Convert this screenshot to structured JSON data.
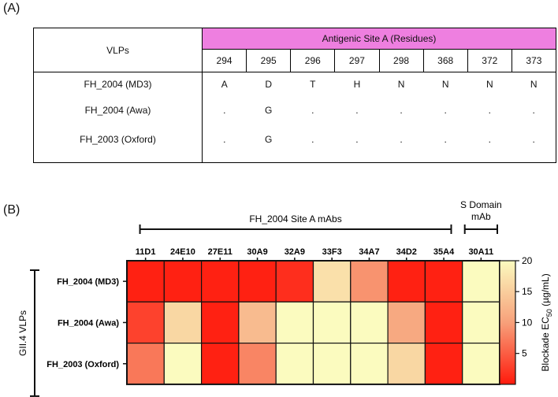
{
  "panel_a": {
    "label": "(A)",
    "vlps_header": "VLPs",
    "site_header": "Antigenic Site A (Residues)",
    "residues": [
      "294",
      "295",
      "296",
      "297",
      "298",
      "368",
      "372",
      "373"
    ],
    "rows": [
      {
        "name": "FH_2004 (MD3)",
        "values": [
          "A",
          "D",
          "T",
          "H",
          "N",
          "N",
          "N",
          "N"
        ]
      },
      {
        "name": "FH_2004 (Awa)",
        "values": [
          ".",
          "G",
          ".",
          ".",
          ".",
          ".",
          ".",
          "."
        ]
      },
      {
        "name": "FH_2003 (Oxford)",
        "values": [
          ".",
          "G",
          ".",
          ".",
          ".",
          ".",
          ".",
          "."
        ]
      }
    ]
  },
  "panel_b": {
    "label": "(B)",
    "group_label_site_a": "FH_2004 Site A mAbs",
    "group_label_s_domain_line1": "S Domain",
    "group_label_s_domain_line2": "mAb",
    "y_group_label": "GII.4 VLPs",
    "colorbar_label": "Blockade EC",
    "colorbar_sub": "50",
    "colorbar_unit": " (µg/mL)",
    "colors": {
      "low": "#ff1a0c",
      "mid": "#f7a07a",
      "high": "#fbfbbf"
    }
  },
  "chart_data": {
    "type": "heatmap",
    "title": "",
    "x_categories": [
      "11D1",
      "24E10",
      "27E11",
      "30A9",
      "32A9",
      "33F3",
      "34A7",
      "34D2",
      "35A4",
      "30A11"
    ],
    "y_categories": [
      "FH_2004 (MD3)",
      "FH_2004 (Awa)",
      "FH_2003 (Oxford)"
    ],
    "values": [
      [
        0.5,
        0.5,
        0.5,
        0.5,
        1.5,
        17,
        9,
        0.5,
        0.5,
        20
      ],
      [
        3,
        16,
        0.5,
        13,
        20,
        20,
        20,
        11,
        0.5,
        20
      ],
      [
        7,
        20,
        0.5,
        8,
        20,
        20,
        20,
        16,
        0.5,
        20
      ]
    ],
    "colorbar": {
      "min": 0,
      "max": 20,
      "ticks": [
        5,
        10,
        15,
        20
      ],
      "label": "Blockade EC50 (µg/mL)"
    }
  }
}
